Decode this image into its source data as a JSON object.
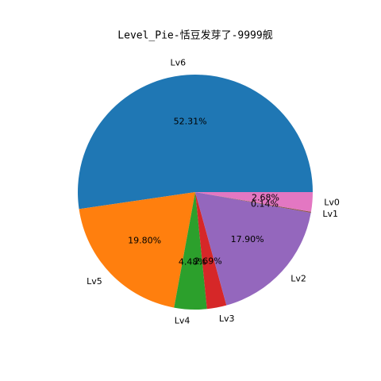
{
  "chart_data": {
    "type": "pie",
    "title": "Level_Pie-恬豆发芽了-9999舰",
    "categories": [
      "Lv6",
      "Lv5",
      "Lv4",
      "Lv3",
      "Lv2",
      "Lv1",
      "Lv0"
    ],
    "values": [
      52.31,
      19.8,
      4.48,
      2.69,
      17.9,
      0.14,
      2.68
    ],
    "value_labels": [
      "52.31%",
      "19.80%",
      "4.48%",
      "2.69%",
      "17.90%",
      "0.14%",
      "2.68%"
    ],
    "colors": [
      "#1f77b4",
      "#ff7f0e",
      "#2ca02c",
      "#d62728",
      "#9467bd",
      "#8c564b",
      "#e377c2"
    ]
  }
}
